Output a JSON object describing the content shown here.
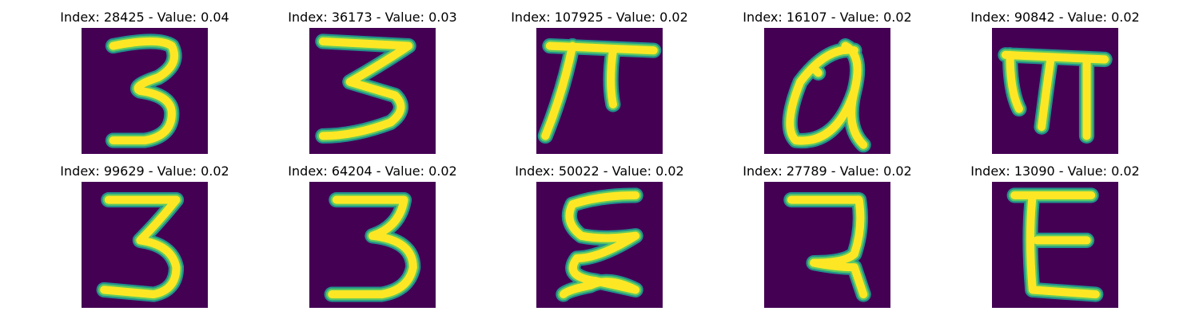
{
  "figure": {
    "colors": {
      "background": "#440154",
      "stroke_outer": "#21918c",
      "stroke_mid": "#5ec962",
      "stroke_core": "#fde725"
    },
    "panels": [
      {
        "title": "Index: 28425 - Value: 0.04",
        "glyph": "three-a"
      },
      {
        "title": "Index: 36173 - Value: 0.03",
        "glyph": "three-b"
      },
      {
        "title": "Index: 107925 - Value: 0.02",
        "glyph": "pi-like"
      },
      {
        "title": "Index: 16107 - Value: 0.02",
        "glyph": "loop-a"
      },
      {
        "title": "Index: 90842 - Value: 0.02",
        "glyph": "m-like"
      },
      {
        "title": "Index: 99629 - Value: 0.02",
        "glyph": "three-c"
      },
      {
        "title": "Index: 64204 - Value: 0.02",
        "glyph": "three-d"
      },
      {
        "title": "Index: 50022 - Value: 0.02",
        "glyph": "squiggle"
      },
      {
        "title": "Index: 27789 - Value: 0.02",
        "glyph": "seven-like"
      },
      {
        "title": "Index: 13090 - Value: 0.02",
        "glyph": "e-like"
      }
    ]
  }
}
